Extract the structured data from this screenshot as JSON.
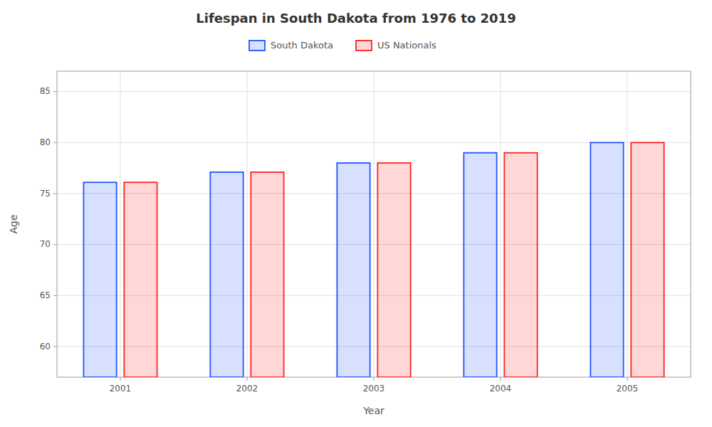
{
  "chart_data": {
    "type": "bar",
    "title": "Lifespan in South Dakota from 1976 to 2019",
    "x_label": "Year",
    "y_label": "Age",
    "categories": [
      "2001",
      "2002",
      "2003",
      "2004",
      "2005"
    ],
    "series": [
      {
        "name": "South Dakota",
        "color": "#2255ff",
        "values": [
          76.1,
          77.1,
          78.0,
          79.0,
          80.0
        ]
      },
      {
        "name": "US Nationals",
        "color": "#ff2222",
        "values": [
          76.1,
          77.1,
          78.0,
          79.0,
          80.0
        ]
      }
    ],
    "ylim": [
      57,
      87
    ],
    "yticks": [
      60,
      65,
      70,
      75,
      80,
      85
    ],
    "grid": true,
    "legend": "top"
  }
}
